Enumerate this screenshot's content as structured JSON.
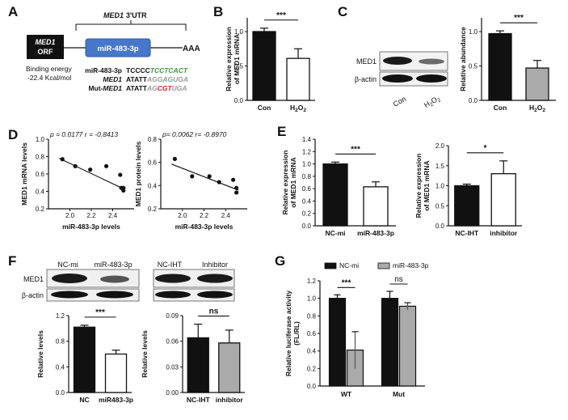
{
  "panel_labels": [
    "A",
    "B",
    "C",
    "D",
    "E",
    "F",
    "G"
  ],
  "panelA": {
    "utr_title": "3'UTR",
    "gene": "MED1",
    "orf_gene": "MED1",
    "orf_suffix": "ORF",
    "mirna": "miR-483-3p",
    "polyA": "AAA",
    "binding_energy_label": "Binding energy",
    "binding_energy_value": "-22.4 Kcal/mol",
    "rows": [
      {
        "label": "miR-483-3p",
        "seq_black": "TCCCC",
        "seq_color": "TCCTCACT",
        "color": "#3a9a3a"
      },
      {
        "label": "MED1",
        "seq_black": "ATATT",
        "seq_color": "AGGAGUGA",
        "color": "#999999"
      },
      {
        "label_prefix": "Mut-",
        "label": "MED1",
        "seq_black": "ATATT",
        "seq_color_a": "AG",
        "seq_color_b": "CGT",
        "seq_color_c": "UGA",
        "color_a": "#999999",
        "color_b": "#cc2222",
        "color_c": "#999999"
      }
    ]
  },
  "panelC": {
    "blot_labels": [
      "MED1",
      "β-actin"
    ],
    "lane_labels": [
      "Con",
      "H2O2"
    ]
  },
  "panelF": {
    "blot_labels": [
      "MED1",
      "β-actin"
    ],
    "lane_labels_left": [
      "NC-mi",
      "miR-483-3p"
    ],
    "lane_labels_right": [
      "NC-IHT",
      "Inhibitor"
    ]
  },
  "chart_data": [
    {
      "id": "B",
      "type": "bar",
      "ylabel": "Relative expression of MED1 mRNA",
      "categories": [
        "Con",
        "H2O2"
      ],
      "values": [
        1.0,
        0.61
      ],
      "errors": [
        0.05,
        0.14
      ],
      "ylim": [
        0,
        1.2
      ],
      "yticks": [
        "0.0",
        "0.5",
        "1.0"
      ],
      "fills": [
        "#111111",
        "#ffffff"
      ],
      "significance": "***"
    },
    {
      "id": "C",
      "type": "bar",
      "ylabel": "Relative abundance",
      "categories": [
        "Con",
        "H2O2"
      ],
      "values": [
        0.97,
        0.47
      ],
      "errors": [
        0.04,
        0.11
      ],
      "ylim": [
        0,
        1.2
      ],
      "yticks": [
        "0.0",
        "0.5",
        "1.0"
      ],
      "fills": [
        "#111111",
        "#aaaaaa"
      ],
      "significance": "***"
    },
    {
      "id": "D1",
      "type": "scatter",
      "xlabel": "miR-483-3p levels",
      "ylabel": "MED1 mRNA levels",
      "annotation": "p = 0.0177   r = -0.8413",
      "x": [
        1.93,
        2.05,
        2.19,
        2.34,
        2.47,
        2.48,
        2.5,
        2.5
      ],
      "y": [
        0.77,
        0.69,
        0.65,
        0.69,
        0.59,
        0.44,
        0.41,
        0.44
      ],
      "xlim": [
        1.8,
        2.6
      ],
      "ylim": [
        0.2,
        1.0
      ],
      "xticks": [
        "2.0",
        "2.2",
        "2.4"
      ],
      "yticks": [
        "0.2",
        "0.4",
        "0.6",
        "0.8",
        "1.0"
      ],
      "fit": [
        [
          1.9,
          0.78
        ],
        [
          2.5,
          0.43
        ]
      ]
    },
    {
      "id": "D2",
      "type": "scatter",
      "xlabel": "miR-483-3p levels",
      "ylabel": "MED1 protein levels",
      "annotation": "p= 0.0062   r= -0.8970",
      "x": [
        1.93,
        2.09,
        2.25,
        2.34,
        2.47,
        2.5,
        2.5
      ],
      "y": [
        0.63,
        0.48,
        0.48,
        0.43,
        0.45,
        0.38,
        0.34
      ],
      "xlim": [
        1.8,
        2.6
      ],
      "ylim": [
        0.2,
        0.8
      ],
      "xticks": [
        "2.0",
        "2.2",
        "2.4"
      ],
      "yticks": [
        "0.2",
        "0.4",
        "0.6",
        "0.8"
      ],
      "fit": [
        [
          1.9,
          0.585
        ],
        [
          2.52,
          0.36
        ]
      ]
    },
    {
      "id": "E1",
      "type": "bar",
      "ylabel": "Relative expression of MED1 mRNA",
      "categories": [
        "NC-mi",
        "miR-483-3p"
      ],
      "values": [
        1.0,
        0.63
      ],
      "errors": [
        0.03,
        0.08
      ],
      "ylim": [
        0,
        1.4
      ],
      "yticks": [
        "0.0",
        "0.2",
        "0.4",
        "0.6",
        "0.8",
        "1.0",
        "1.2",
        "1.4"
      ],
      "fills": [
        "#111111",
        "#ffffff"
      ],
      "significance": "***"
    },
    {
      "id": "E2",
      "type": "bar",
      "ylabel": "Relative expression of MED1 mRNA",
      "categories": [
        "NC-IHT",
        "inhibitor"
      ],
      "values": [
        1.0,
        1.3
      ],
      "errors": [
        0.04,
        0.32
      ],
      "ylim": [
        0,
        2.0
      ],
      "yticks": [
        "0.0",
        "0.5",
        "1.0",
        "1.5",
        "2.0"
      ],
      "fills": [
        "#111111",
        "#ffffff"
      ],
      "significance": "*"
    },
    {
      "id": "F1",
      "type": "bar",
      "ylabel": "Relative levels",
      "categories": [
        "NC",
        "miR483-3p"
      ],
      "values": [
        1.02,
        0.6
      ],
      "errors": [
        0.03,
        0.06
      ],
      "ylim": [
        0,
        1.2
      ],
      "yticks": [
        "0.0",
        "0.4",
        "0.8",
        "1.2"
      ],
      "fills": [
        "#111111",
        "#ffffff"
      ],
      "significance": "***"
    },
    {
      "id": "F2",
      "type": "bar",
      "ylabel": "Relative levels",
      "categories": [
        "NC-IHT",
        "inhibitor"
      ],
      "values": [
        0.064,
        0.058
      ],
      "errors": [
        0.016,
        0.015
      ],
      "ylim": [
        0,
        0.09
      ],
      "yticks": [
        "0.00",
        "0.03",
        "0.06",
        "0.09"
      ],
      "fills": [
        "#111111",
        "#aaaaaa"
      ],
      "significance": "ns"
    },
    {
      "id": "G",
      "type": "bar",
      "ylabel": "Relative luciferase activity (FL/RL)",
      "categories": [
        "WT",
        "Mut"
      ],
      "series": [
        {
          "name": "NC-mi",
          "values": [
            1.0,
            1.0
          ],
          "errors": [
            0.04,
            0.08
          ],
          "fill": "#111111"
        },
        {
          "name": "miR-483-3p",
          "values": [
            0.41,
            0.91
          ],
          "errors": [
            0.21,
            0.04
          ],
          "fill": "#aaaaaa"
        }
      ],
      "ylim": [
        0,
        1.2
      ],
      "yticks": [
        "0.0",
        "0.2",
        "0.4",
        "0.6",
        "0.8",
        "1.0",
        "1.2"
      ],
      "significance": [
        "***",
        "ns"
      ]
    }
  ]
}
